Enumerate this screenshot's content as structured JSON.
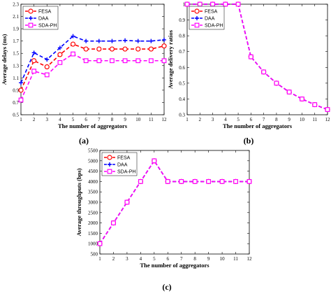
{
  "chart_data": [
    {
      "type": "line",
      "panel_label": "(a)",
      "xlabel": "The number of aggregators",
      "ylabel": "Average delays (ms)",
      "x": [
        1,
        2,
        3,
        4,
        5,
        6,
        7,
        8,
        9,
        10,
        11,
        12
      ],
      "xlim": [
        1,
        12
      ],
      "xticks": [
        "1",
        "2",
        "3",
        "4",
        "5",
        "6",
        "7",
        "8",
        "9",
        "10",
        "11",
        "12"
      ],
      "ylim": [
        0.5,
        2.3
      ],
      "yticks": [
        "0.5",
        "0.7",
        "0.9",
        "1.1",
        "1.3",
        "1.5",
        "1.7",
        "1.9",
        "2.1",
        "2.3"
      ],
      "legend_position": "top-left",
      "series": [
        {
          "name": "FESA",
          "color": "#ff0000",
          "marker": "circle",
          "values": [
            0.9,
            1.38,
            1.28,
            1.48,
            1.65,
            1.57,
            1.57,
            1.57,
            1.57,
            1.57,
            1.57,
            1.62
          ]
        },
        {
          "name": "DAA",
          "color": "#0000ff",
          "marker": "plus",
          "values": [
            1.02,
            1.51,
            1.4,
            1.59,
            1.78,
            1.7,
            1.7,
            1.7,
            1.71,
            1.7,
            1.7,
            1.72
          ]
        },
        {
          "name": "SDA-PH",
          "color": "#ff00ff",
          "marker": "square",
          "values": [
            0.74,
            1.21,
            1.15,
            1.35,
            1.49,
            1.38,
            1.38,
            1.38,
            1.38,
            1.38,
            1.38,
            1.38
          ]
        }
      ]
    },
    {
      "type": "line",
      "panel_label": "(b)",
      "xlabel": "The number of aggregators",
      "ylabel": "Average delivery ratios",
      "x": [
        1,
        2,
        3,
        4,
        5,
        6,
        7,
        8,
        9,
        10,
        11,
        12
      ],
      "xlim": [
        1,
        12
      ],
      "xticks": [
        "1",
        "2",
        "3",
        "4",
        "5",
        "6",
        "7",
        "8",
        "9",
        "10",
        "11",
        "12"
      ],
      "ylim": [
        0.3,
        1
      ],
      "yticks": [
        "0.3",
        "0.4",
        "0.5",
        "0.6",
        "0.7",
        "0.8",
        "0.9",
        "1"
      ],
      "legend_position": "top-left",
      "series": [
        {
          "name": "FESA",
          "color": "#ff0000",
          "marker": "circle",
          "values": [
            1,
            1,
            1,
            1,
            1,
            0.667,
            0.571,
            0.5,
            0.444,
            0.4,
            0.364,
            0.333
          ]
        },
        {
          "name": "DAA",
          "color": "#0000ff",
          "marker": "plus",
          "values": [
            1,
            1,
            1,
            1,
            1,
            0.667,
            0.571,
            0.5,
            0.444,
            0.4,
            0.364,
            0.333
          ]
        },
        {
          "name": "SDA-PH",
          "color": "#ff00ff",
          "marker": "square",
          "values": [
            1,
            1,
            1,
            1,
            1,
            0.667,
            0.571,
            0.5,
            0.444,
            0.4,
            0.364,
            0.333
          ]
        }
      ]
    },
    {
      "type": "line",
      "panel_label": "(c)",
      "xlabel": "The number of aggregators",
      "ylabel": "Average throughputs (bps)",
      "x": [
        1,
        2,
        3,
        4,
        5,
        6,
        7,
        8,
        9,
        10,
        11,
        12
      ],
      "xlim": [
        1,
        12
      ],
      "xticks": [
        "1",
        "2",
        "3",
        "4",
        "5",
        "6",
        "7",
        "8",
        "9",
        "10",
        "11",
        "12"
      ],
      "ylim": [
        500,
        5500
      ],
      "yticks": [
        "500",
        "1000",
        "1500",
        "2000",
        "2500",
        "3000",
        "3500",
        "4000",
        "4500",
        "5000",
        "5500"
      ],
      "legend_position": "top-left",
      "series": [
        {
          "name": "FESA",
          "color": "#ff0000",
          "marker": "circle",
          "values": [
            1000,
            2000,
            3000,
            4000,
            5000,
            4000,
            4000,
            4000,
            4000,
            4000,
            4000,
            4000
          ]
        },
        {
          "name": "DAA",
          "color": "#0000ff",
          "marker": "plus",
          "values": [
            1000,
            2000,
            3000,
            4000,
            5000,
            4000,
            4000,
            4000,
            4000,
            4000,
            4000,
            4000
          ]
        },
        {
          "name": "SDA-PH",
          "color": "#ff00ff",
          "marker": "square",
          "values": [
            1000,
            2000,
            3000,
            4000,
            5000,
            4000,
            4000,
            4000,
            4000,
            4000,
            4000,
            4000
          ]
        }
      ]
    }
  ]
}
